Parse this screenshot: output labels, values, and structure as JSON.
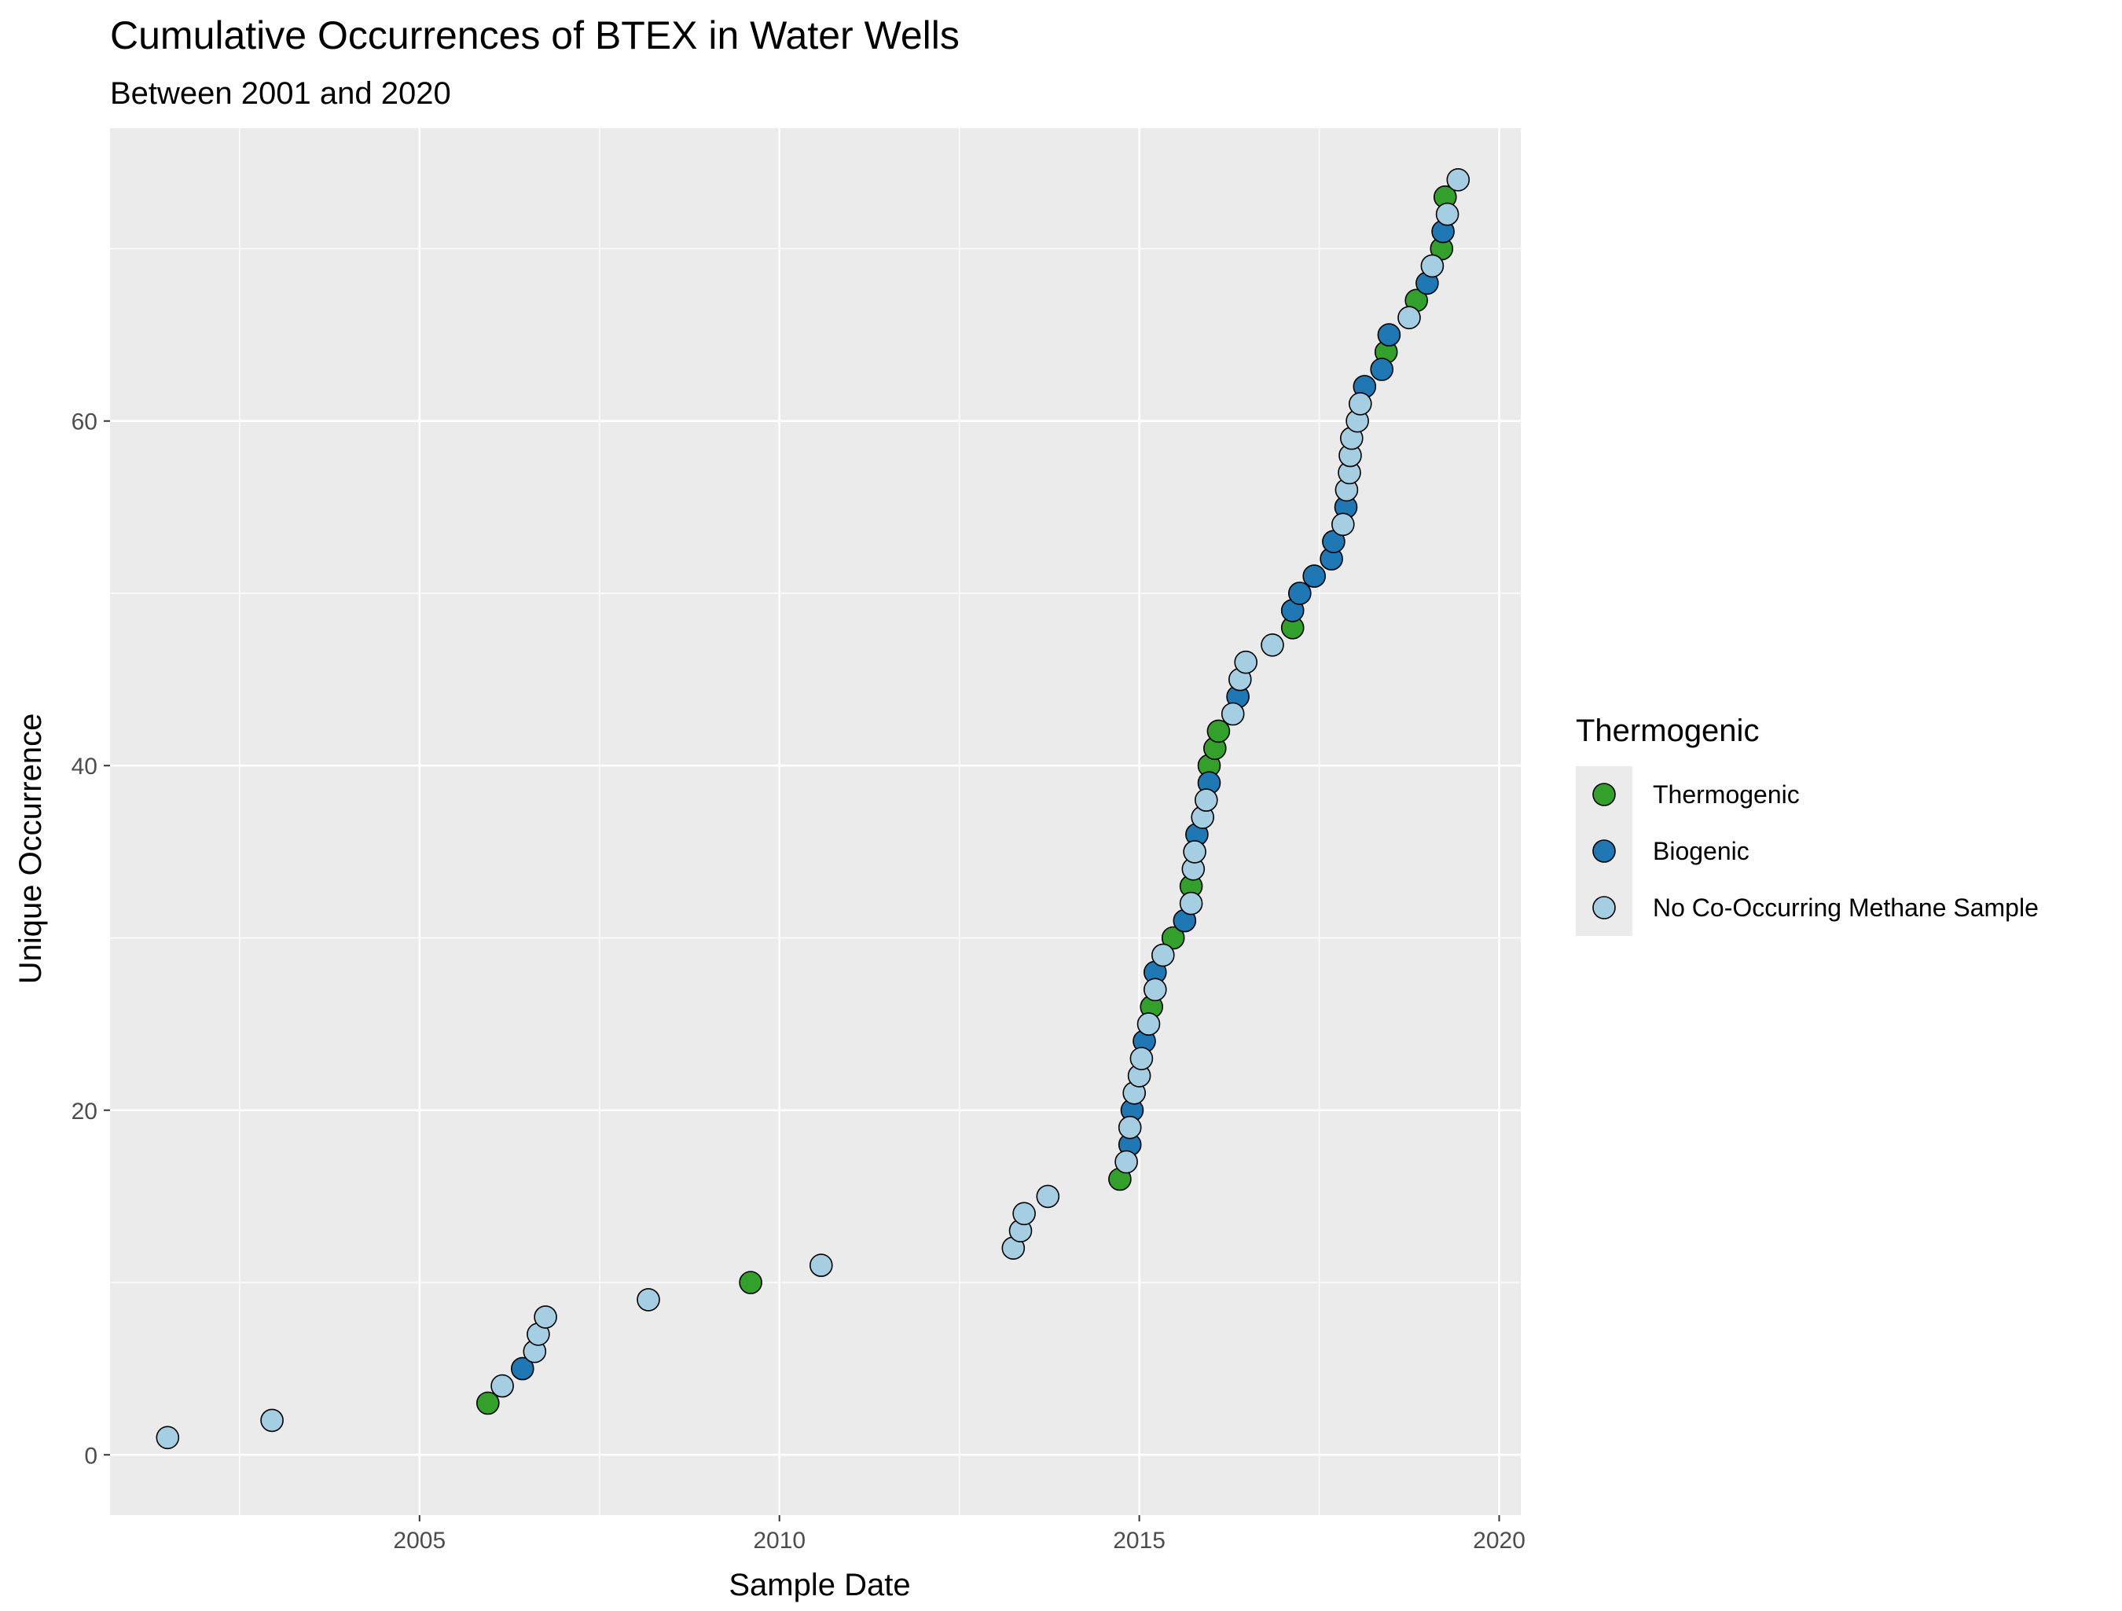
{
  "colors": {
    "panel_background": "#ebebeb",
    "grid_line": "#ffffff",
    "point_outline": "#000000",
    "Thermogenic": "#33a02c",
    "Biogenic": "#1f78b4",
    "No Co-Occurring Methane Sample": "#a6cee3"
  },
  "chart_data": {
    "type": "scatter",
    "title": "Cumulative Occurrences of BTEX in Water Wells",
    "subtitle": "Between 2001 and 2020",
    "xlabel": "Sample Date",
    "ylabel": "Unique Occurrence",
    "x_scale": "date (decimal year)",
    "xlim": [
      2000.7,
      2020.3
    ],
    "ylim": [
      -3.5,
      77
    ],
    "x_ticks": [
      2005,
      2010,
      2015,
      2020
    ],
    "x_tick_labels": [
      "2005",
      "2010",
      "2015",
      "2020"
    ],
    "y_ticks": [
      0,
      20,
      40,
      60
    ],
    "y_tick_labels": [
      "0",
      "20",
      "40",
      "60"
    ],
    "grid": true,
    "legend": {
      "title": "Thermogenic",
      "position": "right",
      "entries": [
        "Thermogenic",
        "Biogenic",
        "No Co-Occurring Methane Sample"
      ]
    },
    "series": [
      {
        "name": "Thermogenic",
        "points": [
          [
            2005.95,
            3
          ],
          [
            2009.6,
            10
          ],
          [
            2014.73,
            16
          ],
          [
            2015.17,
            26
          ],
          [
            2015.47,
            30
          ],
          [
            2015.72,
            33
          ],
          [
            2015.97,
            40
          ],
          [
            2016.05,
            41
          ],
          [
            2016.1,
            42
          ],
          [
            2017.13,
            48
          ],
          [
            2018.43,
            64
          ],
          [
            2018.85,
            67
          ],
          [
            2019.2,
            70
          ],
          [
            2019.25,
            73
          ]
        ]
      },
      {
        "name": "Biogenic",
        "points": [
          [
            2006.43,
            5
          ],
          [
            2014.87,
            18
          ],
          [
            2014.9,
            20
          ],
          [
            2015.07,
            24
          ],
          [
            2015.22,
            28
          ],
          [
            2015.63,
            31
          ],
          [
            2015.8,
            36
          ],
          [
            2015.97,
            39
          ],
          [
            2016.37,
            44
          ],
          [
            2017.13,
            49
          ],
          [
            2017.23,
            50
          ],
          [
            2017.43,
            51
          ],
          [
            2017.67,
            52
          ],
          [
            2017.7,
            53
          ],
          [
            2017.87,
            55
          ],
          [
            2018.13,
            62
          ],
          [
            2018.37,
            63
          ],
          [
            2018.47,
            65
          ],
          [
            2019.0,
            68
          ],
          [
            2019.22,
            71
          ]
        ]
      },
      {
        "name": "No Co-Occurring Methane Sample",
        "points": [
          [
            2001.5,
            1
          ],
          [
            2002.95,
            2
          ],
          [
            2006.15,
            4
          ],
          [
            2006.6,
            6
          ],
          [
            2006.65,
            7
          ],
          [
            2006.75,
            8
          ],
          [
            2008.18,
            9
          ],
          [
            2010.58,
            11
          ],
          [
            2013.25,
            12
          ],
          [
            2013.35,
            13
          ],
          [
            2013.4,
            14
          ],
          [
            2013.73,
            15
          ],
          [
            2014.82,
            17
          ],
          [
            2014.87,
            19
          ],
          [
            2014.93,
            21
          ],
          [
            2015.0,
            22
          ],
          [
            2015.03,
            23
          ],
          [
            2015.13,
            25
          ],
          [
            2015.22,
            27
          ],
          [
            2015.33,
            29
          ],
          [
            2015.72,
            32
          ],
          [
            2015.75,
            34
          ],
          [
            2015.77,
            35
          ],
          [
            2015.88,
            37
          ],
          [
            2015.93,
            38
          ],
          [
            2016.3,
            43
          ],
          [
            2016.4,
            45
          ],
          [
            2016.48,
            46
          ],
          [
            2016.85,
            47
          ],
          [
            2017.83,
            54
          ],
          [
            2017.88,
            56
          ],
          [
            2017.92,
            57
          ],
          [
            2017.93,
            58
          ],
          [
            2017.95,
            59
          ],
          [
            2018.03,
            60
          ],
          [
            2018.07,
            61
          ],
          [
            2018.75,
            66
          ],
          [
            2019.07,
            69
          ],
          [
            2019.28,
            72
          ],
          [
            2019.43,
            74
          ]
        ]
      }
    ]
  }
}
